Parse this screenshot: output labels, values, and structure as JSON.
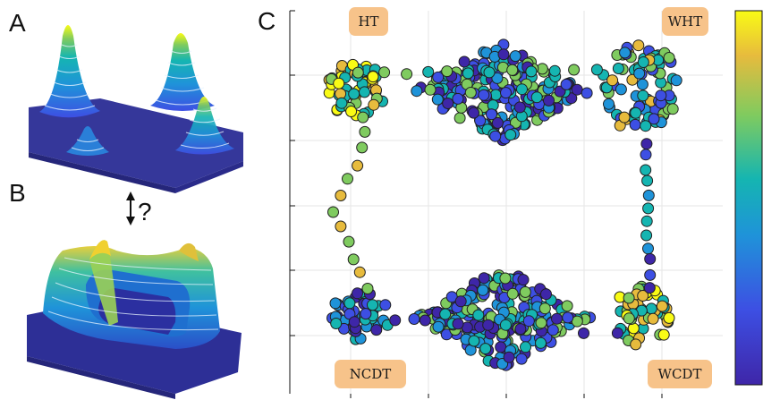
{
  "panels": {
    "a": "A",
    "b": "B",
    "c": "C"
  },
  "relation_text": "?",
  "state_labels": {
    "ht": "HT",
    "wht": "WHT",
    "ncdt": "NCDT",
    "wcdt": "WCDT"
  },
  "colors": {
    "tag_bg": "#f7c38a",
    "point_edge": "#202020",
    "grid": "#e6e6e6",
    "cmap": [
      "#3e26a8",
      "#3d4fe3",
      "#1f93d9",
      "#15b5b1",
      "#7fcb5f",
      "#e7bb3d",
      "#f9fb15"
    ]
  }
}
